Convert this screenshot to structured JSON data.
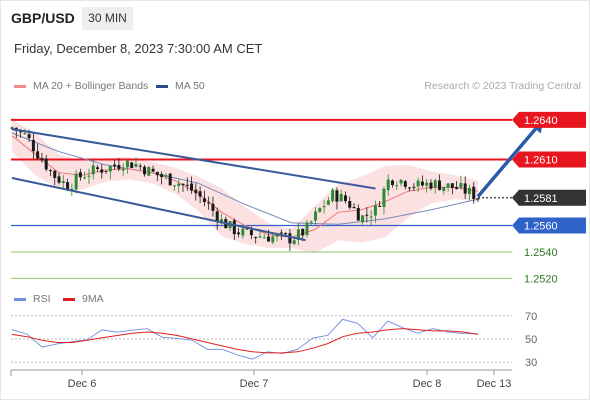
{
  "header": {
    "symbol": "GBP/USD",
    "timeframe": "30 MIN",
    "datetime": "Friday, December 8, 2023 7:30:00 AM CET"
  },
  "legend": {
    "ma_bollinger": "MA 20 + Bollinger Bands",
    "ma50": "MA 50",
    "rsi": "RSI",
    "rsi_ma": "9MA",
    "copyright": "Research © 2023 Trading Central"
  },
  "colors": {
    "resistance": "#e8141e",
    "support_blue": "#2f63c8",
    "support_green": "#8fc46e",
    "channel": "#3a5a9a",
    "ma20": "#f07878",
    "bollinger_fill": "#fbdede",
    "ma50": "#7a8ab8",
    "candle_up": "#2d8a34",
    "candle_down": "#1a1a1a",
    "current_label": "#333333",
    "rsi_line": "#6d8fe0",
    "rsi_ma": "#e02020"
  },
  "chart_data": [
    {
      "type": "candlestick",
      "instrument": "GBP/USD",
      "timeframe": "30 MIN",
      "x_tick_labels": [
        "Dec 6",
        "Dec 7",
        "Dec 8",
        "Dec 13"
      ],
      "ylim": [
        1.2515,
        1.2655
      ],
      "current_price": 1.2581,
      "levels": [
        {
          "value": 1.264,
          "label": "1.2640",
          "kind": "resistance"
        },
        {
          "value": 1.261,
          "label": "1.2610",
          "kind": "resistance"
        },
        {
          "value": 1.256,
          "label": "1.2560",
          "kind": "support"
        },
        {
          "value": 1.254,
          "label": "1.2540",
          "kind": "support"
        },
        {
          "value": 1.252,
          "label": "1.2520",
          "kind": "support"
        }
      ],
      "current_label": "1.2581",
      "close_path": [
        [
          0,
          1.2634
        ],
        [
          3,
          1.2628
        ],
        [
          6,
          1.2612
        ],
        [
          9,
          1.2598
        ],
        [
          12,
          1.259
        ],
        [
          15,
          1.2598
        ],
        [
          18,
          1.2602
        ],
        [
          21,
          1.2604
        ],
        [
          24,
          1.2608
        ],
        [
          27,
          1.2606
        ],
        [
          30,
          1.26
        ],
        [
          33,
          1.2596
        ],
        [
          36,
          1.2592
        ],
        [
          39,
          1.2586
        ],
        [
          42,
          1.2576
        ],
        [
          45,
          1.2563
        ],
        [
          48,
          1.2556
        ],
        [
          51,
          1.2553
        ],
        [
          54,
          1.2552
        ],
        [
          57,
          1.2551
        ],
        [
          60,
          1.255
        ],
        [
          63,
          1.2556
        ],
        [
          66,
          1.2572
        ],
        [
          69,
          1.2584
        ],
        [
          72,
          1.2578
        ],
        [
          75,
          1.2566
        ],
        [
          78,
          1.2572
        ],
        [
          81,
          1.2596
        ],
        [
          84,
          1.2594
        ],
        [
          87,
          1.259
        ],
        [
          90,
          1.2592
        ],
        [
          93,
          1.259
        ],
        [
          96,
          1.2588
        ],
        [
          100,
          1.2582
        ]
      ],
      "ma20": [
        [
          0,
          1.2628
        ],
        [
          5,
          1.2614
        ],
        [
          10,
          1.26
        ],
        [
          15,
          1.2598
        ],
        [
          20,
          1.2602
        ],
        [
          25,
          1.2603
        ],
        [
          30,
          1.26
        ],
        [
          35,
          1.2594
        ],
        [
          40,
          1.2584
        ],
        [
          45,
          1.257
        ],
        [
          50,
          1.256
        ],
        [
          55,
          1.2553
        ],
        [
          60,
          1.2551
        ],
        [
          65,
          1.2557
        ],
        [
          70,
          1.257
        ],
        [
          75,
          1.2572
        ],
        [
          80,
          1.2578
        ],
        [
          85,
          1.2586
        ],
        [
          90,
          1.2589
        ],
        [
          95,
          1.2589
        ],
        [
          100,
          1.2586
        ]
      ],
      "bollinger_upper": [
        [
          0,
          1.264
        ],
        [
          5,
          1.263
        ],
        [
          10,
          1.2614
        ],
        [
          15,
          1.2609
        ],
        [
          20,
          1.2611
        ],
        [
          25,
          1.2612
        ],
        [
          30,
          1.2608
        ],
        [
          35,
          1.2604
        ],
        [
          40,
          1.2597
        ],
        [
          45,
          1.2588
        ],
        [
          50,
          1.2574
        ],
        [
          55,
          1.2562
        ],
        [
          60,
          1.2557
        ],
        [
          65,
          1.2575
        ],
        [
          70,
          1.2591
        ],
        [
          75,
          1.2597
        ],
        [
          80,
          1.2605
        ],
        [
          85,
          1.2606
        ],
        [
          90,
          1.2601
        ],
        [
          95,
          1.2598
        ],
        [
          100,
          1.2594
        ]
      ],
      "bollinger_lower": [
        [
          0,
          1.2616
        ],
        [
          5,
          1.2598
        ],
        [
          10,
          1.2588
        ],
        [
          15,
          1.2587
        ],
        [
          20,
          1.2593
        ],
        [
          25,
          1.2595
        ],
        [
          30,
          1.2592
        ],
        [
          35,
          1.2584
        ],
        [
          40,
          1.2571
        ],
        [
          45,
          1.2552
        ],
        [
          50,
          1.2546
        ],
        [
          55,
          1.2543
        ],
        [
          60,
          1.2543
        ],
        [
          65,
          1.2539
        ],
        [
          70,
          1.2549
        ],
        [
          75,
          1.2547
        ],
        [
          80,
          1.2551
        ],
        [
          85,
          1.2566
        ],
        [
          90,
          1.2577
        ],
        [
          95,
          1.258
        ],
        [
          100,
          1.2578
        ]
      ],
      "ma50": [
        [
          0,
          1.263
        ],
        [
          10,
          1.2616
        ],
        [
          20,
          1.2606
        ],
        [
          30,
          1.26
        ],
        [
          40,
          1.2592
        ],
        [
          50,
          1.2576
        ],
        [
          60,
          1.2562
        ],
        [
          70,
          1.2561
        ],
        [
          80,
          1.2565
        ],
        [
          90,
          1.2572
        ],
        [
          100,
          1.258
        ]
      ],
      "channel_upper": [
        [
          0,
          1.2633
        ],
        [
          78,
          1.2588
        ]
      ],
      "channel_lower": [
        [
          0,
          1.2596
        ],
        [
          63,
          1.2549
        ]
      ],
      "projection_arrow": [
        [
          100,
          1.2582
        ],
        [
          114,
          1.264
        ]
      ]
    },
    {
      "type": "line",
      "series": [
        {
          "name": "RSI",
          "values": [
            58,
            52,
            46,
            44,
            47,
            52,
            55,
            57,
            59,
            56,
            54,
            50,
            47,
            44,
            39,
            36,
            35,
            36,
            39,
            42,
            48,
            56,
            66,
            62,
            54,
            63,
            60,
            57,
            56,
            58,
            55,
            52
          ]
        },
        {
          "name": "9MA",
          "values": [
            54,
            52,
            49,
            47,
            47,
            49,
            51,
            53,
            55,
            56,
            55,
            53,
            50,
            47,
            44,
            41,
            39,
            38,
            38,
            39,
            42,
            46,
            52,
            55,
            56,
            58,
            59,
            58,
            57,
            57,
            56,
            54
          ]
        }
      ],
      "y_ticks": [
        70,
        50,
        30
      ],
      "ylim": [
        25,
        75
      ]
    }
  ]
}
